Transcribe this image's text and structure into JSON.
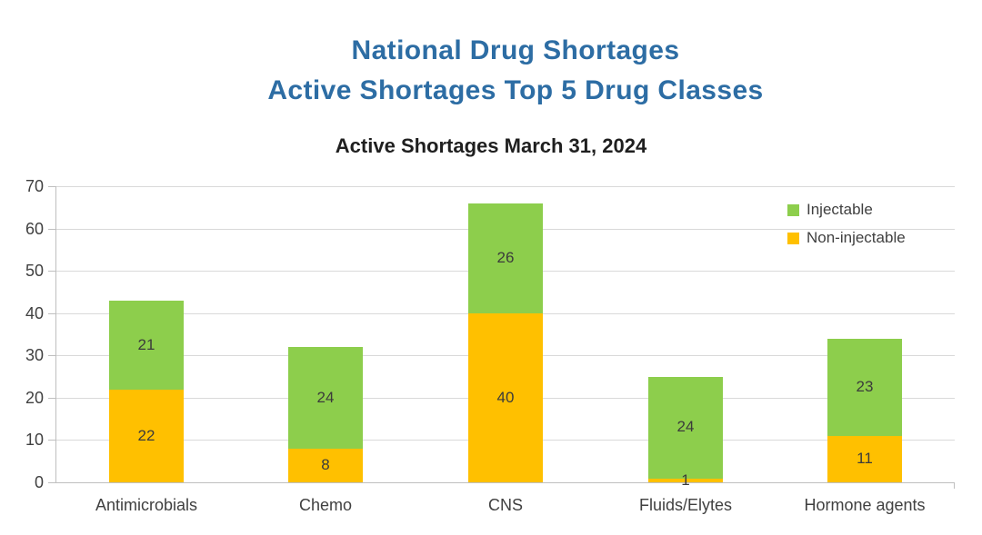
{
  "page_title": {
    "line1": "National Drug Shortages",
    "line2": "Active Shortages Top 5 Drug Classes"
  },
  "chart_data": {
    "type": "bar",
    "stacked": true,
    "title": "Active Shortages March 31, 2024",
    "categories": [
      "Antimicrobials",
      "Chemo",
      "CNS",
      "Fluids/Elytes",
      "Hormone agents"
    ],
    "series": [
      {
        "name": "Non-injectable",
        "color": "#FFC000",
        "values": [
          22,
          8,
          40,
          1,
          11
        ]
      },
      {
        "name": "Injectable",
        "color": "#8DCE4C",
        "values": [
          21,
          24,
          26,
          24,
          23
        ]
      }
    ],
    "totals": [
      43,
      32,
      66,
      25,
      34
    ],
    "ylabel": "",
    "xlabel": "",
    "ylim": [
      0,
      70
    ],
    "ytick_step": 10,
    "yticks": [
      0,
      10,
      20,
      30,
      40,
      50,
      60,
      70
    ],
    "grid": true,
    "legend_position": "top-right",
    "legend_order": [
      "Injectable",
      "Non-injectable"
    ]
  },
  "colors": {
    "title_blue": "#2D6DA4",
    "chart_title_text": "#1F1F1F",
    "axis_text": "#404040",
    "data_label_text": "#3B3B3B",
    "gridline": "#D9D9D9",
    "axis_line": "#BFBFBF",
    "background": "#FFFFFF"
  }
}
